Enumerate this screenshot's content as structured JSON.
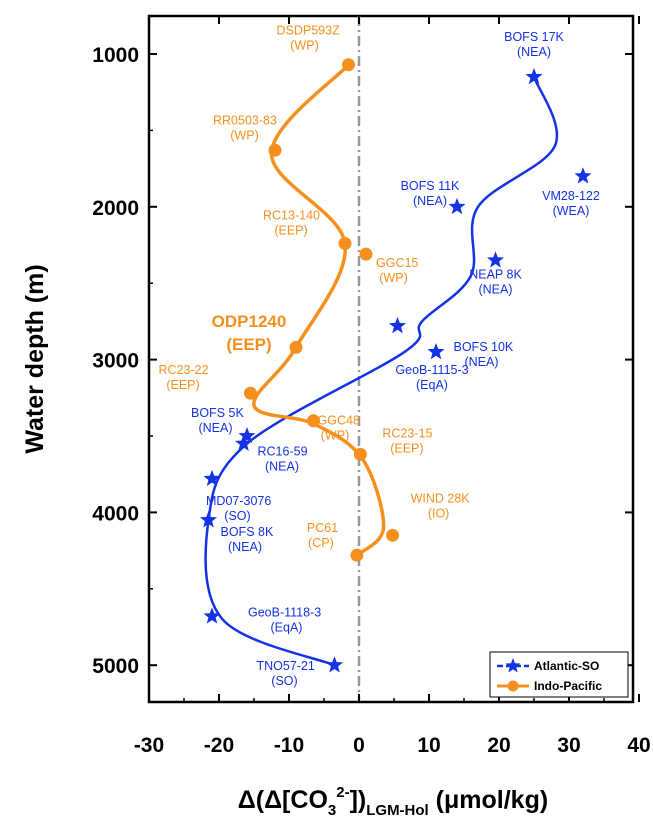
{
  "chart_data": {
    "type": "scatter",
    "xlabel": {
      "main": "Δ(Δ[CO",
      "sub3": "3",
      "sup": "2-",
      "bracket": "])",
      "sub": "LGM-Hol",
      "units": " (μmol/kg)"
    },
    "ylabel": "Water depth (m)",
    "xlim": [
      -30,
      40
    ],
    "ylim": [
      5250,
      650
    ],
    "x_ticks": [
      -30,
      -20,
      -10,
      0,
      10,
      20,
      30,
      40
    ],
    "y_ticks": [
      1000,
      2000,
      3000,
      4000,
      5000
    ],
    "zero_line": true,
    "grid": false,
    "legend": {
      "position": "bottom-right",
      "entries": [
        {
          "label": "Atlantic-SO",
          "color": "#1432e6"
        },
        {
          "label": "Indo-Pacific",
          "color": "#f5901e"
        }
      ]
    },
    "highlight_label": {
      "text_line1": "ODP1240",
      "text_line2": "(EEP)",
      "color": "#f5901e"
    },
    "series": [
      {
        "name": "Atlantic-SO",
        "color": "#1432e6",
        "marker": "star",
        "points": [
          {
            "x": 25,
            "y": 1150,
            "label1": "BOFS 17K",
            "label2": "(NEA)"
          },
          {
            "x": 32,
            "y": 1800,
            "label1": "VM28-122",
            "label2": "(WEA)"
          },
          {
            "x": 14,
            "y": 2000,
            "label1": "BOFS 11K",
            "label2": "(NEA)"
          },
          {
            "x": 19.5,
            "y": 2350,
            "label1": "NEAP 8K",
            "label2": "(NEA)"
          },
          {
            "x": 5.5,
            "y": 2780,
            "label1": "BOFS 10K",
            "label2": "(NEA)"
          },
          {
            "x": 11,
            "y": 2950,
            "label1": "GeoB-1115-3",
            "label2": "(EqA)"
          },
          {
            "x": -16,
            "y": 3500,
            "label1": "BOFS 5K",
            "label2": "(NEA)"
          },
          {
            "x": -16.5,
            "y": 3550,
            "label1": "RC16-59",
            "label2": "(NEA)"
          },
          {
            "x": -21,
            "y": 3780,
            "label1": "MD07-3076",
            "label2": "(SO)"
          },
          {
            "x": -21.5,
            "y": 4050,
            "label1": "BOFS 8K",
            "label2": "(NEA)"
          },
          {
            "x": -21,
            "y": 4680,
            "label1": "GeoB-1118-3",
            "label2": "(EqA)"
          },
          {
            "x": -3.5,
            "y": 5000,
            "label1": "TNO57-21",
            "label2": "(SO)"
          }
        ],
        "curve": [
          {
            "x": 25,
            "y": 1150
          },
          {
            "x": 28,
            "y": 1600
          },
          {
            "x": 17,
            "y": 2000
          },
          {
            "x": 16,
            "y": 2450
          },
          {
            "x": 9,
            "y": 2750
          },
          {
            "x": 6.5,
            "y": 2950
          },
          {
            "x": -16,
            "y": 3550
          },
          {
            "x": -21.5,
            "y": 4050
          },
          {
            "x": -19.5,
            "y": 4700
          },
          {
            "x": -3.5,
            "y": 5000
          }
        ]
      },
      {
        "name": "Indo-Pacific",
        "color": "#f5901e",
        "marker": "circle",
        "points": [
          {
            "x": -1.5,
            "y": 1070,
            "label1": "DSDP593Z",
            "label2": "(WP)"
          },
          {
            "x": -12,
            "y": 1630,
            "label1": "RR0503-83",
            "label2": "(WP)"
          },
          {
            "x": -2,
            "y": 2240,
            "label1": "RC13-140",
            "label2": "(EEP)"
          },
          {
            "x": 1,
            "y": 2310,
            "label1": "GGC15",
            "label2": "(WP)"
          },
          {
            "x": -9,
            "y": 2920,
            "label1": "",
            "label2": ""
          },
          {
            "x": -15.5,
            "y": 3220,
            "label1": "RC23-22",
            "label2": "(EEP)"
          },
          {
            "x": -6.5,
            "y": 3400,
            "label1": "GGC48",
            "label2": "(WP)"
          },
          {
            "x": 0.2,
            "y": 3620,
            "label1": "RC23-15",
            "label2": "(EEP)"
          },
          {
            "x": 4.8,
            "y": 4150,
            "label1": "WIND 28K",
            "label2": "(IO)"
          },
          {
            "x": -0.3,
            "y": 4280,
            "label1": "PC61",
            "label2": "(CP)"
          }
        ],
        "curve": [
          {
            "x": -1.5,
            "y": 1070
          },
          {
            "x": -12.5,
            "y": 1650
          },
          {
            "x": -2,
            "y": 2240
          },
          {
            "x": -9,
            "y": 2920
          },
          {
            "x": -15,
            "y": 3300
          },
          {
            "x": -6.5,
            "y": 3420
          },
          {
            "x": 0.5,
            "y": 3650
          },
          {
            "x": 3.5,
            "y": 4100
          },
          {
            "x": -0.3,
            "y": 4280
          }
        ]
      }
    ]
  }
}
